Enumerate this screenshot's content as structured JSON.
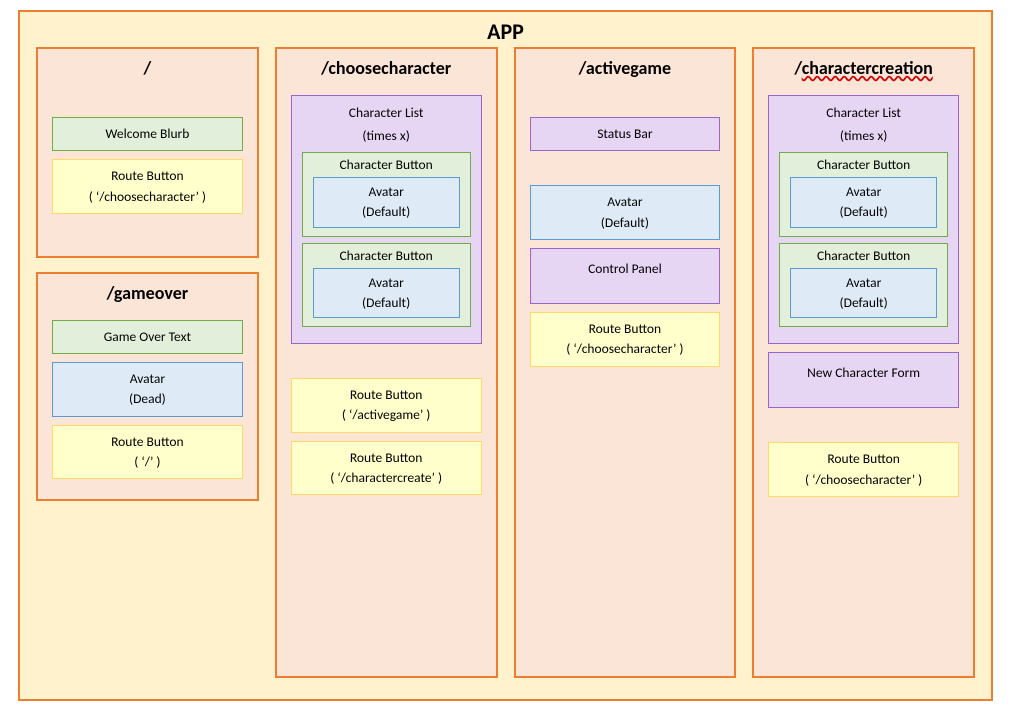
{
  "colors": {
    "app_bg": "#fff2cc",
    "app_border": "#ed7d31",
    "route_bg": "#fbe5d6",
    "route_border": "#ed7d31",
    "green_bg": "#e2efda",
    "green_border": "#70ad47",
    "yellow_bg": "#ffffcc",
    "yellow_border": "#ffd966",
    "purple_bg": "#e6d5f3",
    "purple_border": "#9966cc",
    "blue_bg": "#deebf7",
    "blue_border": "#5b9bd5",
    "title_color": "#000000"
  },
  "app": {
    "title": "APP"
  },
  "routes": {
    "root": {
      "title": "/",
      "welcome": "Welcome Blurb",
      "route_btn_l1": "Route Button",
      "route_btn_l2": "( ‘/choosecharacter’ )"
    },
    "gameover": {
      "title": "/gameover",
      "gameover_text": "Game Over Text",
      "avatar_l1": "Avatar",
      "avatar_l2": "(Dead)",
      "route_btn_l1": "Route Button",
      "route_btn_l2": "( ‘/’ )"
    },
    "choosecharacter": {
      "title": "/choosecharacter",
      "list_label_l1": "Character List",
      "list_label_l2": "(times x)",
      "charbtn1": "Character Button",
      "avatar1_l1": "Avatar",
      "avatar1_l2": "(Default)",
      "charbtn2": "Character Button",
      "avatar2_l1": "Avatar",
      "avatar2_l2": "(Default)",
      "route_btn1_l1": "Route Button",
      "route_btn1_l2": "( ‘/activegame’ )",
      "route_btn2_l1": "Route Button",
      "route_btn2_l2": "( ‘/charactercreate’ )"
    },
    "activegame": {
      "title": "/activegame",
      "statusbar": "Status Bar",
      "avatar_l1": "Avatar",
      "avatar_l2": "(Default)",
      "controlpanel": "Control Panel",
      "route_btn_l1": "Route Button",
      "route_btn_l2": "( ‘/choosecharacter’ )"
    },
    "charactercreation": {
      "title": "/charactercreation",
      "list_label_l1": "Character List",
      "list_label_l2": "(times x)",
      "charbtn1": "Character Button",
      "avatar1_l1": "Avatar",
      "avatar1_l2": "(Default)",
      "charbtn2": "Character Button",
      "avatar2_l1": "Avatar",
      "avatar2_l2": "(Default)",
      "newcharform": "New Character Form",
      "route_btn_l1": "Route Button",
      "route_btn_l2": "( ‘/choosecharacter’ )"
    }
  }
}
